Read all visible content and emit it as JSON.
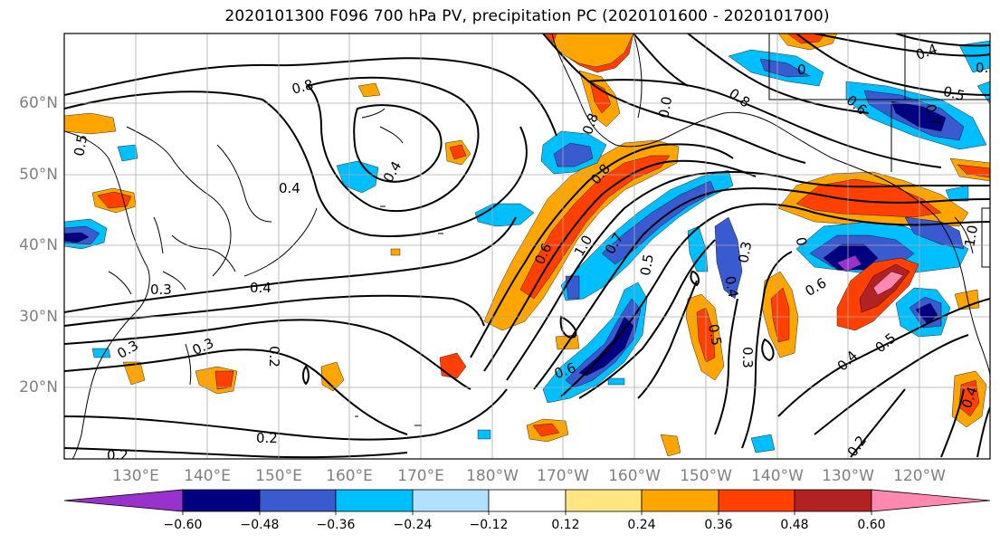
{
  "title": "2020101300 F096 700 hPa PV, precipitation PC (2020101600 - 2020101700)",
  "lat_labels": [
    "60°N",
    "50°N",
    "40°N",
    "30°N",
    "20°N"
  ],
  "lon_labels": [
    "130°E",
    "140°E",
    "150°E",
    "160°E",
    "170°E",
    "180°W",
    "170°W",
    "160°W",
    "150°W",
    "140°W",
    "130°W",
    "120°W"
  ],
  "colorbar": {
    "ticks": [
      "−0.60",
      "−0.48",
      "−0.36",
      "−0.24",
      "−0.12",
      "0.12",
      "0.24",
      "0.36",
      "0.48",
      "0.60"
    ],
    "colors": [
      "#9932CC",
      "#000080",
      "#3A5BD0",
      "#00BFFF",
      "#B0E2FF",
      "#FFFFFF",
      "#FFE680",
      "#FFA500",
      "#FF4000",
      "#B22222",
      "#FF88B0"
    ]
  },
  "contour_labels": [
    "0.8",
    "0.4",
    "0.4",
    "0.5",
    "0.3",
    "0.4",
    "0.3",
    "0.3",
    "0.2",
    "0.2",
    "0.2",
    "0.6",
    "1.0",
    "0.7",
    "0.8",
    "0.8",
    "0.6",
    "0.5",
    "0.3",
    "0.4",
    "0.5",
    "0.3",
    "0.6",
    "0.4",
    "0.5",
    "0.4",
    "0.2",
    "0.7",
    "0.8",
    "0",
    "0.6",
    "0.5",
    "0.4",
    "0.3",
    "1.0",
    "0.0",
    "0"
  ]
}
